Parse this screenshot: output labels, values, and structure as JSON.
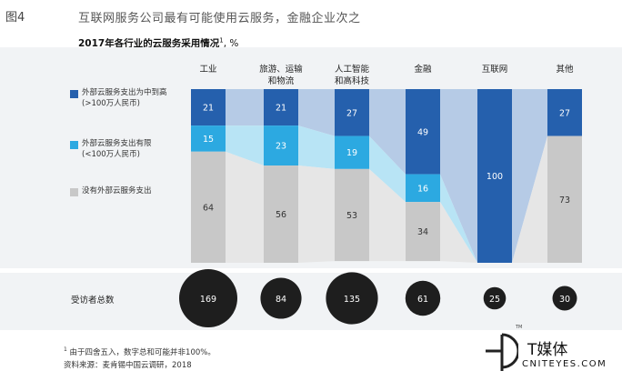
{
  "header": {
    "fig_label": "图4",
    "title": "互联网服务公司最有可能使用云服务，金融企业次之"
  },
  "chart_data": {
    "type": "bar",
    "title": "2017年各行业的云服务采用情况",
    "title_sup": "1",
    "unit": "%",
    "stacked": true,
    "categories": [
      "工业",
      "旅游、运输和物流",
      "人工智能和高科技",
      "金融",
      "互联网",
      "其他"
    ],
    "category_lines": [
      [
        "工业"
      ],
      [
        "旅游、运输",
        "和物流"
      ],
      [
        "人工智能",
        "和高科技"
      ],
      [
        "金融"
      ],
      [
        "互联网"
      ],
      [
        "其他"
      ]
    ],
    "series": [
      {
        "name": "外部云服务支出为中到高(>100万人民币)",
        "legend_lines": [
          "外部云服务支出为中到高",
          "(>100万人民币)"
        ],
        "values": [
          21,
          21,
          27,
          49,
          100,
          27
        ],
        "color": "#2560ad"
      },
      {
        "name": "外部云服务支出有限(<100万人民币)",
        "legend_lines": [
          "外部云服务支出有限",
          "(<100万人民币)"
        ],
        "values": [
          15,
          23,
          19,
          16,
          0,
          0
        ],
        "color": "#2ca9e1"
      },
      {
        "name": "没有外部云服务支出",
        "legend_lines": [
          "没有外部云服务支出"
        ],
        "values": [
          64,
          56,
          53,
          34,
          0,
          73
        ],
        "color": "#c8c8c8"
      }
    ],
    "respondents_label": "受访者总数",
    "respondents": [
      169,
      84,
      135,
      61,
      25,
      30
    ],
    "ylim": [
      0,
      100
    ],
    "link_colors": {
      "blue": "#b6cbe6",
      "cyan": "#b8e4f5",
      "gray": "#e6e6e6"
    }
  },
  "footnotes": {
    "note1": "由于四舍五入，数字总和可能并非100%。",
    "note1_sup": "1",
    "source": "资料来源：麦肯锡中国云调研，2018"
  },
  "logo": {
    "tm": "TM",
    "name": "T媒体",
    "domain": "CNITEYES.COM"
  }
}
